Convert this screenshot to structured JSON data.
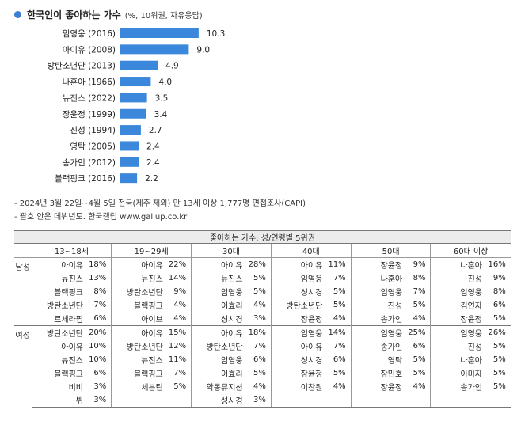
{
  "title": "한국인이 좋아하는 가수",
  "subtitle": "(%, 10위권, 자유응답)",
  "chart_data": {
    "type": "bar",
    "orientation": "horizontal",
    "categories": [
      "임영웅 (2016)",
      "아이유 (2008)",
      "방탄소년단 (2013)",
      "나훈아 (1966)",
      "뉴진스 (2022)",
      "장윤정 (1999)",
      "진성 (1994)",
      "영탁 (2005)",
      "송가인 (2012)",
      "블랙핑크 (2016)"
    ],
    "values": [
      10.3,
      9.0,
      4.9,
      4.0,
      3.5,
      3.4,
      2.7,
      2.4,
      2.4,
      2.2
    ],
    "value_labels": [
      "10.3",
      "9.0",
      "4.9",
      "4.0",
      "3.5",
      "3.4",
      "2.7",
      "2.4",
      "2.4",
      "2.2"
    ],
    "color": "#3a87db"
  },
  "notes": [
    "- 2024년 3월 22일~4월 5일 전국(제주 제외) 만 13세 이상 1,777명 면접조사(CAPI)",
    "- 괄호 안은 데뷔년도. 한국갤럽 www.gallup.co.kr"
  ],
  "table": {
    "caption": "좋아하는 가수: 성/연령별 5위권",
    "age_groups": [
      "13~18세",
      "19~29세",
      "30대",
      "40대",
      "50대",
      "60대 이상"
    ],
    "groups": [
      {
        "label": "남성",
        "rows": [
          [
            [
              "아이유",
              "18%"
            ],
            [
              "아이유",
              "22%"
            ],
            [
              "아이유",
              "28%"
            ],
            [
              "아이유",
              "11%"
            ],
            [
              "장윤정",
              "9%"
            ],
            [
              "나훈아",
              "16%"
            ]
          ],
          [
            [
              "뉴진스",
              "13%"
            ],
            [
              "뉴진스",
              "14%"
            ],
            [
              "뉴진스",
              "5%"
            ],
            [
              "임영웅",
              "7%"
            ],
            [
              "나훈아",
              "8%"
            ],
            [
              "진성",
              "9%"
            ]
          ],
          [
            [
              "블랙핑크",
              "8%"
            ],
            [
              "방탄소년단",
              "9%"
            ],
            [
              "임영웅",
              "5%"
            ],
            [
              "성시경",
              "5%"
            ],
            [
              "임영웅",
              "7%"
            ],
            [
              "임영웅",
              "8%"
            ]
          ],
          [
            [
              "방탄소년단",
              "7%"
            ],
            [
              "블랙핑크",
              "4%"
            ],
            [
              "이효리",
              "4%"
            ],
            [
              "방탄소년단",
              "5%"
            ],
            [
              "진성",
              "5%"
            ],
            [
              "김연자",
              "6%"
            ]
          ],
          [
            [
              "르세라핌",
              "6%"
            ],
            [
              "아이브",
              "4%"
            ],
            [
              "성시경",
              "3%"
            ],
            [
              "장윤정",
              "4%"
            ],
            [
              "송가인",
              "4%"
            ],
            [
              "장윤정",
              "5%"
            ]
          ]
        ]
      },
      {
        "label": "여성",
        "rows": [
          [
            [
              "방탄소년단",
              "20%"
            ],
            [
              "아이유",
              "15%"
            ],
            [
              "아이유",
              "18%"
            ],
            [
              "임영웅",
              "14%"
            ],
            [
              "임영웅",
              "25%"
            ],
            [
              "임영웅",
              "26%"
            ]
          ],
          [
            [
              "아이유",
              "10%"
            ],
            [
              "방탄소년단",
              "12%"
            ],
            [
              "방탄소년단",
              "7%"
            ],
            [
              "아이유",
              "7%"
            ],
            [
              "송가인",
              "6%"
            ],
            [
              "진성",
              "5%"
            ]
          ],
          [
            [
              "뉴진스",
              "10%"
            ],
            [
              "뉴진스",
              "11%"
            ],
            [
              "임영웅",
              "6%"
            ],
            [
              "성시경",
              "6%"
            ],
            [
              "영탁",
              "5%"
            ],
            [
              "나훈아",
              "5%"
            ]
          ],
          [
            [
              "블랙핑크",
              "6%"
            ],
            [
              "블랙핑크",
              "7%"
            ],
            [
              "이효리",
              "5%"
            ],
            [
              "장윤정",
              "5%"
            ],
            [
              "장민호",
              "5%"
            ],
            [
              "이미자",
              "5%"
            ]
          ],
          [
            [
              "비비",
              "3%"
            ],
            [
              "세븐틴",
              "5%"
            ],
            [
              "악동뮤지션",
              "4%"
            ],
            [
              "이찬원",
              "4%"
            ],
            [
              "장윤정",
              "4%"
            ],
            [
              "송가인",
              "5%"
            ]
          ],
          [
            [
              "뷔",
              "3%"
            ],
            [
              "",
              ""
            ],
            [
              "성시경",
              "3%"
            ],
            [
              "",
              ""
            ],
            [
              "",
              ""
            ],
            [
              "",
              ""
            ]
          ]
        ]
      }
    ]
  }
}
